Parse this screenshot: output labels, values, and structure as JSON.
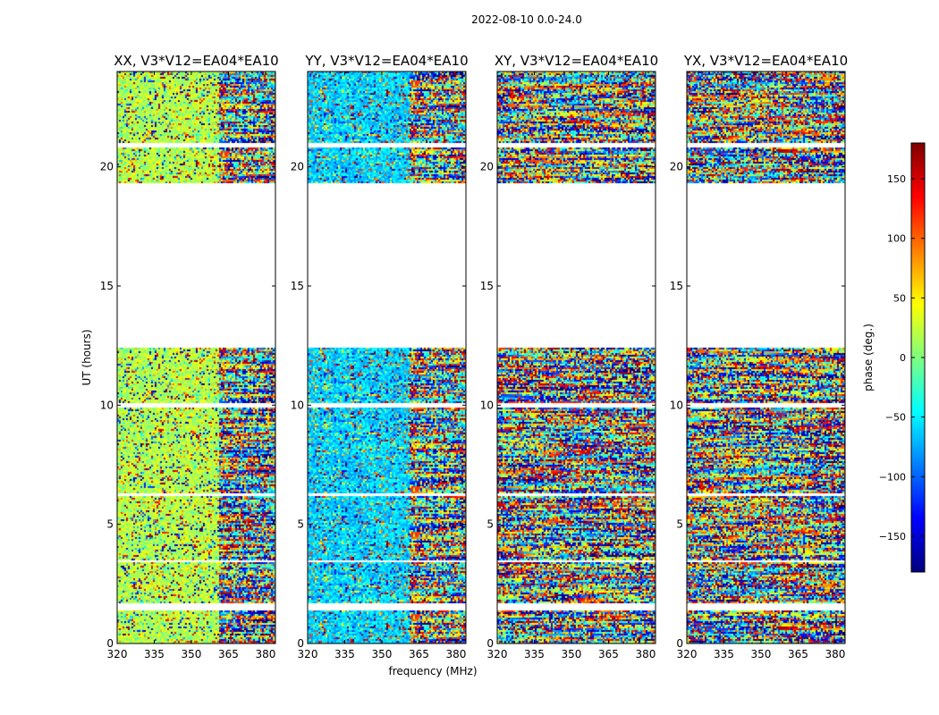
{
  "figure": {
    "suptitle": "2022-08-10 0.0-24.0",
    "xlabel": "frequency (MHz)",
    "ylabel": "UT (hours)",
    "colorbar_label": "phase (deg.)",
    "colormap": [
      "#00007f",
      "#0000ff",
      "#007fff",
      "#00ffff",
      "#7fff7f",
      "#ffff00",
      "#ff7f00",
      "#ff0000",
      "#7f0000"
    ]
  },
  "chart_data": [
    {
      "type": "heatmap",
      "title": "XX, V3*V12=EA04*EA10",
      "x_ticks": [
        320,
        335,
        350,
        365,
        380
      ],
      "xlim": [
        320,
        384
      ],
      "y_ticks": [
        0,
        5,
        10,
        15,
        20
      ],
      "ylim": [
        0,
        24
      ],
      "value_range": [
        -180,
        180
      ],
      "data_intervals_ut_hours": [
        [
          0.0,
          1.4
        ],
        [
          1.7,
          3.4
        ],
        [
          3.5,
          6.2
        ],
        [
          6.3,
          9.9
        ],
        [
          10.1,
          12.4
        ],
        [
          19.3,
          20.8
        ],
        [
          21.0,
          24.0
        ]
      ],
      "coherent_band": {
        "freq_range": [
          320,
          361
        ],
        "phase_deg": 20
      }
    },
    {
      "type": "heatmap",
      "title": "YY, V3*V12=EA04*EA10",
      "x_ticks": [
        320,
        335,
        350,
        365,
        380
      ],
      "xlim": [
        320,
        384
      ],
      "y_ticks": [
        0,
        5,
        10,
        15,
        20
      ],
      "ylim": [
        0,
        24
      ],
      "value_range": [
        -180,
        180
      ],
      "data_intervals_ut_hours": [
        [
          0.0,
          1.4
        ],
        [
          1.7,
          3.4
        ],
        [
          3.5,
          6.2
        ],
        [
          6.3,
          9.9
        ],
        [
          10.1,
          12.4
        ],
        [
          19.3,
          20.8
        ],
        [
          21.0,
          24.0
        ]
      ],
      "coherent_band": {
        "freq_range": [
          320,
          361
        ],
        "phase_deg": -60
      }
    },
    {
      "type": "heatmap",
      "title": "XY, V3*V12=EA04*EA10",
      "x_ticks": [
        320,
        335,
        350,
        365,
        380
      ],
      "xlim": [
        320,
        384
      ],
      "y_ticks": [
        0,
        5,
        10,
        15,
        20
      ],
      "ylim": [
        0,
        24
      ],
      "value_range": [
        -180,
        180
      ],
      "data_intervals_ut_hours": [
        [
          0.0,
          1.4
        ],
        [
          1.7,
          3.4
        ],
        [
          3.5,
          6.2
        ],
        [
          6.3,
          9.9
        ],
        [
          10.1,
          12.4
        ],
        [
          19.3,
          20.8
        ],
        [
          21.0,
          24.0
        ]
      ],
      "coherent_band": null
    },
    {
      "type": "heatmap",
      "title": "YX, V3*V12=EA04*EA10",
      "x_ticks": [
        320,
        335,
        350,
        365,
        380
      ],
      "xlim": [
        320,
        384
      ],
      "y_ticks": [
        0,
        5,
        10,
        15,
        20
      ],
      "ylim": [
        0,
        24
      ],
      "value_range": [
        -180,
        180
      ],
      "data_intervals_ut_hours": [
        [
          0.0,
          1.4
        ],
        [
          1.7,
          3.4
        ],
        [
          3.5,
          6.2
        ],
        [
          6.3,
          9.9
        ],
        [
          10.1,
          12.4
        ],
        [
          19.3,
          20.8
        ],
        [
          21.0,
          24.0
        ]
      ],
      "coherent_band": null
    }
  ],
  "colorbar": {
    "ticks": [
      -150,
      -100,
      -50,
      0,
      50,
      100,
      150
    ],
    "range": [
      -180,
      180
    ]
  }
}
